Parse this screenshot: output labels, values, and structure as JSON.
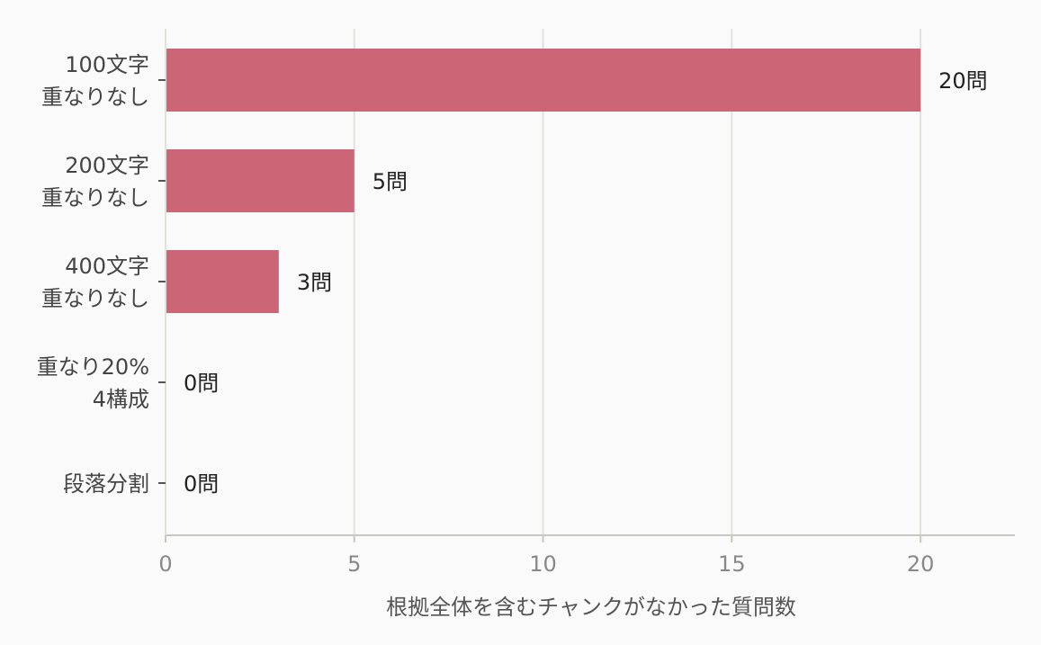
{
  "chart_data": {
    "type": "bar",
    "orientation": "horizontal",
    "categories": [
      [
        "100文字",
        "重なりなし"
      ],
      [
        "200文字",
        "重なりなし"
      ],
      [
        "400文字",
        "重なりなし"
      ],
      [
        "重なり20%",
        "4構成"
      ],
      [
        "段落分割"
      ]
    ],
    "values": [
      20,
      5,
      3,
      0,
      0
    ],
    "data_labels": [
      "20問",
      "5問",
      "3問",
      "0問",
      "0問"
    ],
    "xlabel": "根拠全体を含むチャンクがなかった質問数",
    "ylabel": "",
    "xlim": [
      0,
      22.5
    ],
    "xticks": [
      0,
      5,
      10,
      15,
      20
    ],
    "grid": true,
    "colors": {
      "bar": "#cc6677",
      "grid": "#e2e1dc",
      "axis": "#c8c8c0",
      "background": "#fafafa"
    }
  }
}
